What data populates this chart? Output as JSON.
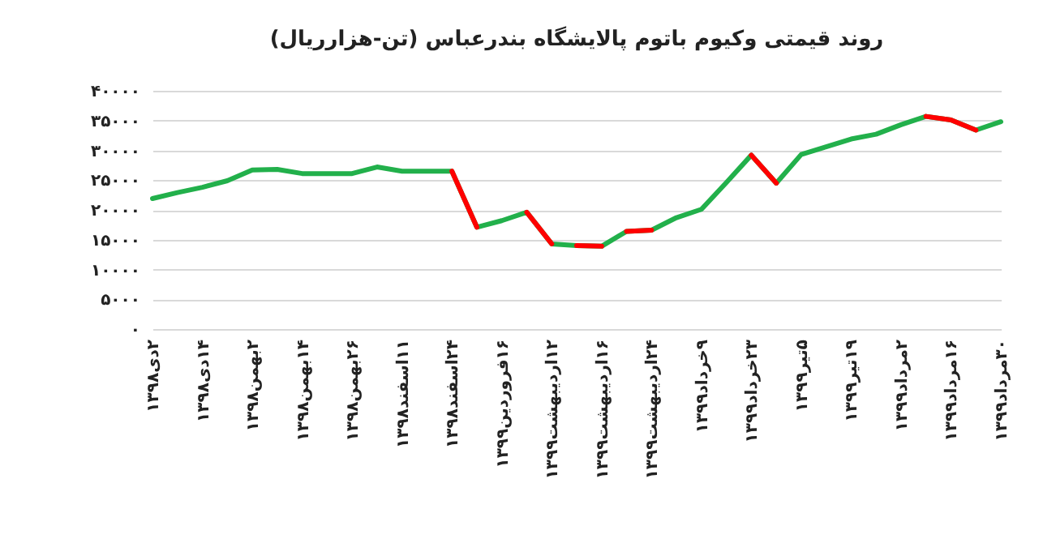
{
  "chart_data": {
    "type": "line",
    "title": "روند قیمتی وکیوم باتوم پالایشگاه بندرعباس (تن-هزارریال)",
    "categories": [
      "۲دی۱۳۹۸",
      null,
      "۱۴دی۱۳۹۸",
      null,
      "۲بهمن۱۳۹۸",
      null,
      "۱۴بهمن۱۳۹۸",
      null,
      "۲۶بهمن۱۳۹۸",
      null,
      "۱۱اسفند۱۳۹۸",
      null,
      "۲۴اسفند۱۳۹۸",
      null,
      "۱۶فروردین۱۳۹۹",
      null,
      "۱۲اردیبهشت۱۳۹۹",
      null,
      "۱۶اردیبهشت۱۳۹۹",
      null,
      "۲۴اردیبهشت۱۳۹۹",
      null,
      "۹خرداد۱۳۹۹",
      null,
      "۲۳خرداد۱۳۹۹",
      null,
      "۵تیر۱۳۹۹",
      null,
      "۱۹تیر۱۳۹۹",
      null,
      "۲مرداد۱۳۹۹",
      null,
      "۱۶مرداد۱۳۹۹",
      null,
      "۳۰مرداد۱۳۹۹"
    ],
    "series": [
      {
        "color": "#22b04b",
        "values": [
          21900,
          22900,
          23800,
          24900,
          26700,
          26800,
          26100,
          26100,
          26100,
          27200,
          26500,
          26500,
          26500,
          17100,
          18200,
          19600,
          14300,
          14000,
          13900,
          16400,
          16600,
          18700,
          20100,
          24600,
          29200,
          24500,
          29300,
          30600,
          31900,
          32700,
          34300,
          35700,
          35100,
          33400,
          34800
        ]
      },
      {
        "color": "#ff0000",
        "values": [
          null,
          null,
          null,
          null,
          null,
          null,
          null,
          null,
          null,
          null,
          null,
          null,
          26500,
          17100,
          null,
          null,
          null,
          null,
          null,
          null,
          null,
          null,
          null,
          null,
          null,
          null,
          null,
          null,
          null,
          null,
          null,
          null,
          null,
          null,
          null
        ]
      },
      {
        "color": "#ff0000",
        "values": [
          null,
          null,
          null,
          null,
          null,
          null,
          null,
          null,
          null,
          null,
          null,
          null,
          null,
          null,
          null,
          19600,
          14300,
          null,
          null,
          null,
          null,
          null,
          null,
          null,
          null,
          null,
          null,
          null,
          null,
          null,
          null,
          null,
          null,
          null,
          null
        ]
      },
      {
        "color": "#ff0000",
        "values": [
          null,
          null,
          null,
          null,
          null,
          null,
          null,
          null,
          null,
          null,
          null,
          null,
          null,
          null,
          null,
          null,
          null,
          14000,
          13900,
          null,
          null,
          null,
          null,
          null,
          null,
          null,
          null,
          null,
          null,
          null,
          null,
          null,
          null,
          null,
          null
        ]
      },
      {
        "color": "#ff0000",
        "values": [
          null,
          null,
          null,
          null,
          null,
          null,
          null,
          null,
          null,
          null,
          null,
          null,
          null,
          null,
          null,
          null,
          null,
          null,
          null,
          16400,
          16600,
          null,
          null,
          null,
          null,
          null,
          null,
          null,
          null,
          null,
          null,
          null,
          null,
          null,
          null
        ]
      },
      {
        "color": "#ff0000",
        "values": [
          null,
          null,
          null,
          null,
          null,
          null,
          null,
          null,
          null,
          null,
          null,
          null,
          null,
          null,
          null,
          null,
          null,
          null,
          null,
          null,
          null,
          null,
          null,
          null,
          29200,
          24500,
          null,
          null,
          null,
          null,
          null,
          null,
          null,
          null,
          null
        ]
      },
      {
        "color": "#ff0000",
        "values": [
          null,
          null,
          null,
          null,
          null,
          null,
          null,
          null,
          null,
          null,
          null,
          null,
          null,
          null,
          null,
          null,
          null,
          null,
          null,
          null,
          null,
          null,
          null,
          null,
          null,
          null,
          null,
          null,
          null,
          null,
          null,
          35700,
          35100,
          33400,
          null
        ]
      }
    ],
    "ylim": [
      0,
      40000
    ],
    "yticks": [
      {
        "value": 0,
        "label": "۰"
      },
      {
        "value": 5000,
        "label": "۵۰۰۰"
      },
      {
        "value": 10000,
        "label": "۱۰۰۰۰"
      },
      {
        "value": 15000,
        "label": "۱۵۰۰۰"
      },
      {
        "value": 20000,
        "label": "۲۰۰۰۰"
      },
      {
        "value": 25000,
        "label": "۲۵۰۰۰"
      },
      {
        "value": 30000,
        "label": "۳۰۰۰۰"
      },
      {
        "value": 35000,
        "label": "۳۵۰۰۰"
      },
      {
        "value": 40000,
        "label": "۴۰۰۰۰"
      }
    ],
    "grid": "y"
  }
}
